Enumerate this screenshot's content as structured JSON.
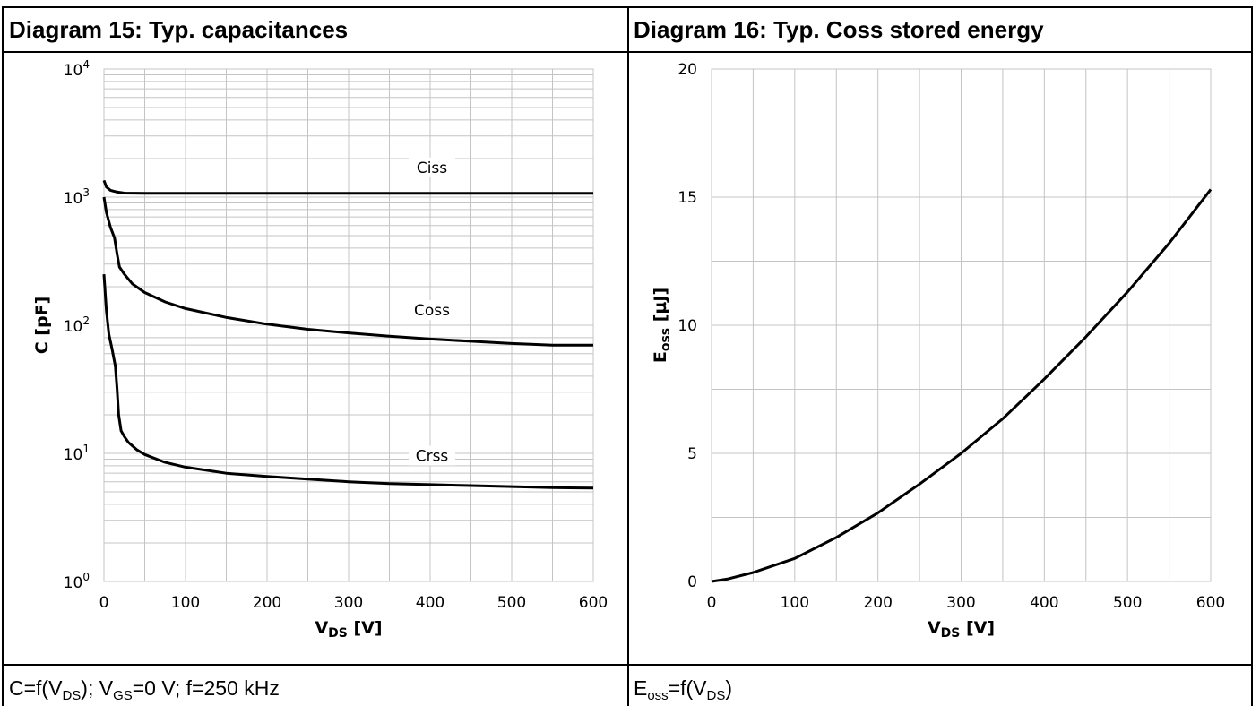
{
  "panels": [
    {
      "title": "Diagram 15: Typ. capacitances",
      "condition": {
        "parts": [
          {
            "t": "C=f(V",
            "sub": false
          },
          {
            "t": "DS",
            "sub": true
          },
          {
            "t": "); V",
            "sub": false
          },
          {
            "t": "GS",
            "sub": true
          },
          {
            "t": "=0 V; f=250 kHz",
            "sub": false
          }
        ]
      }
    },
    {
      "title": "Diagram 16: Typ. Coss stored energy",
      "condition": {
        "parts": [
          {
            "t": "E",
            "sub": false
          },
          {
            "t": "oss",
            "sub": true
          },
          {
            "t": "=f(V",
            "sub": false
          },
          {
            "t": "DS",
            "sub": true
          },
          {
            "t": ")",
            "sub": false
          }
        ]
      }
    }
  ],
  "chart_data": [
    {
      "type": "line",
      "scale": "log-y",
      "xlim": [
        0,
        600
      ],
      "ylim": [
        1,
        10000
      ],
      "x_ticks": [
        0,
        100,
        200,
        300,
        400,
        500,
        600
      ],
      "y_tick_labels": [
        {
          "base": "10",
          "exp": "0",
          "value": 1
        },
        {
          "base": "10",
          "exp": "1",
          "value": 10
        },
        {
          "base": "10",
          "exp": "2",
          "value": 100
        },
        {
          "base": "10",
          "exp": "3",
          "value": 1000
        },
        {
          "base": "10",
          "exp": "4",
          "value": 10000
        }
      ],
      "xlabel": {
        "main": "V",
        "sub": "DS",
        "unit": " [V]"
      },
      "ylabel": "C [pF]",
      "grid": true,
      "series": [
        {
          "name": "Ciss",
          "label_at": {
            "x": 400,
            "y": 1600
          },
          "points": [
            [
              0,
              1350
            ],
            [
              3,
              1200
            ],
            [
              8,
              1130
            ],
            [
              15,
              1100
            ],
            [
              25,
              1075
            ],
            [
              50,
              1070
            ],
            [
              100,
              1070
            ],
            [
              200,
              1070
            ],
            [
              300,
              1070
            ],
            [
              400,
              1070
            ],
            [
              500,
              1070
            ],
            [
              600,
              1070
            ]
          ]
        },
        {
          "name": "Coss",
          "label_at": {
            "x": 400,
            "y": 123
          },
          "points": [
            [
              0,
              1000
            ],
            [
              3,
              760
            ],
            [
              8,
              580
            ],
            [
              13,
              480
            ],
            [
              16,
              360
            ],
            [
              19,
              285
            ],
            [
              25,
              250
            ],
            [
              35,
              210
            ],
            [
              50,
              180
            ],
            [
              75,
              152
            ],
            [
              100,
              135
            ],
            [
              150,
              115
            ],
            [
              200,
              102
            ],
            [
              250,
              93
            ],
            [
              300,
              87
            ],
            [
              350,
              82
            ],
            [
              400,
              78
            ],
            [
              450,
              75
            ],
            [
              500,
              72
            ],
            [
              550,
              70
            ],
            [
              600,
              70
            ]
          ]
        },
        {
          "name": "Crss",
          "label_at": {
            "x": 400,
            "y": 9
          },
          "points": [
            [
              0,
              250
            ],
            [
              3,
              130
            ],
            [
              6,
              85
            ],
            [
              10,
              65
            ],
            [
              14,
              48
            ],
            [
              16,
              32
            ],
            [
              18,
              20
            ],
            [
              21,
              15
            ],
            [
              25,
              13.5
            ],
            [
              30,
              12.2
            ],
            [
              40,
              10.7
            ],
            [
              50,
              9.8
            ],
            [
              75,
              8.5
            ],
            [
              100,
              7.8
            ],
            [
              150,
              7.0
            ],
            [
              200,
              6.6
            ],
            [
              250,
              6.3
            ],
            [
              300,
              6.0
            ],
            [
              350,
              5.8
            ],
            [
              400,
              5.7
            ],
            [
              450,
              5.6
            ],
            [
              500,
              5.5
            ],
            [
              550,
              5.4
            ],
            [
              600,
              5.35
            ]
          ]
        }
      ]
    },
    {
      "type": "line",
      "xlim": [
        0,
        600
      ],
      "ylim": [
        0,
        20
      ],
      "x_ticks": [
        0,
        100,
        200,
        300,
        400,
        500,
        600
      ],
      "y_ticks": [
        0,
        5,
        10,
        15,
        20
      ],
      "xlabel": {
        "main": "V",
        "sub": "DS",
        "unit": " [V]"
      },
      "ylabel": {
        "main": "E",
        "sub": "oss",
        "unit": " [µJ]"
      },
      "grid": true,
      "series": [
        {
          "name": "Eoss",
          "points": [
            [
              0,
              0
            ],
            [
              20,
              0.1
            ],
            [
              50,
              0.35
            ],
            [
              100,
              0.9
            ],
            [
              150,
              1.72
            ],
            [
              200,
              2.68
            ],
            [
              250,
              3.8
            ],
            [
              300,
              5.0
            ],
            [
              350,
              6.35
            ],
            [
              400,
              7.9
            ],
            [
              450,
              9.55
            ],
            [
              500,
              11.3
            ],
            [
              550,
              13.2
            ],
            [
              600,
              15.3
            ]
          ]
        }
      ]
    }
  ]
}
